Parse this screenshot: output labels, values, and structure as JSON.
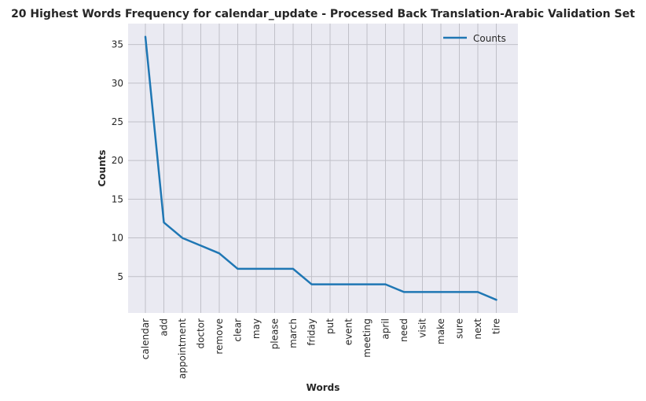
{
  "chart_data": {
    "type": "line",
    "title": "20 Highest Words Frequency for calendar_update - Processed Back Translation-Arabic Validation Set",
    "xlabel": "Words",
    "ylabel": "Counts",
    "categories": [
      "calendar",
      "add",
      "appointment",
      "doctor",
      "remove",
      "clear",
      "may",
      "please",
      "march",
      "friday",
      "put",
      "event",
      "meeting",
      "april",
      "need",
      "visit",
      "make",
      "sure",
      "next",
      "tire"
    ],
    "series": [
      {
        "name": "Counts",
        "values": [
          36,
          12,
          10,
          9,
          8,
          6,
          6,
          6,
          6,
          4,
          4,
          4,
          4,
          4,
          3,
          3,
          3,
          3,
          3,
          2
        ]
      }
    ],
    "y_ticks": [
      5,
      10,
      15,
      20,
      25,
      30,
      35
    ],
    "ylim": [
      0.3,
      37.7
    ],
    "grid": true,
    "legend_position": "top-right",
    "colors": {
      "line": "#1f77b4",
      "background": "#eaeaf2",
      "grid": "#c0c0c8"
    }
  }
}
